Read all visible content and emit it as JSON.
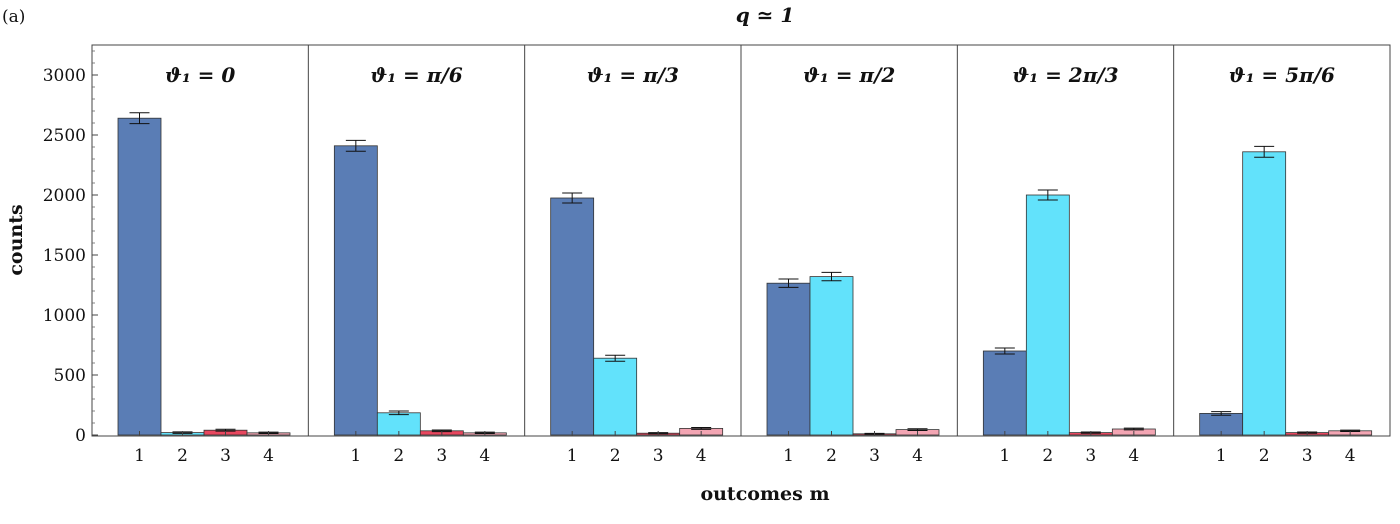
{
  "chart_data": {
    "type": "bar",
    "panel_label": "(a)",
    "title": "q ≃ 1",
    "xlabel": "outcomes m",
    "ylabel": "counts",
    "ylim": [
      0,
      3250
    ],
    "y_ticks": [
      "0",
      "500",
      "1000",
      "1500",
      "2000",
      "2500",
      "3000"
    ],
    "categories": [
      "1",
      "2",
      "3",
      "4"
    ],
    "colors": [
      "#5a7db5",
      "#62e2fb",
      "#e8475f",
      "#f3a5b3"
    ],
    "panels": [
      {
        "title": "ϑ₁ = 0",
        "values": [
          2640,
          20,
          40,
          18
        ],
        "errors": [
          45,
          6,
          8,
          6
        ]
      },
      {
        "title": "ϑ₁ = π/6",
        "values": [
          2410,
          185,
          35,
          18
        ],
        "errors": [
          45,
          15,
          7,
          6
        ]
      },
      {
        "title": "ϑ₁ = π/3",
        "values": [
          1975,
          640,
          15,
          55
        ],
        "errors": [
          42,
          25,
          5,
          8
        ]
      },
      {
        "title": "ϑ₁ = π/2",
        "values": [
          1265,
          1320,
          10,
          45
        ],
        "errors": [
          35,
          35,
          4,
          7
        ]
      },
      {
        "title": "ϑ₁ = 2π/3",
        "values": [
          700,
          2000,
          20,
          50
        ],
        "errors": [
          25,
          42,
          5,
          7
        ]
      },
      {
        "title": "ϑ₁ = 5π/6",
        "values": [
          180,
          2360,
          20,
          35
        ],
        "errors": [
          15,
          45,
          5,
          6
        ]
      }
    ]
  }
}
